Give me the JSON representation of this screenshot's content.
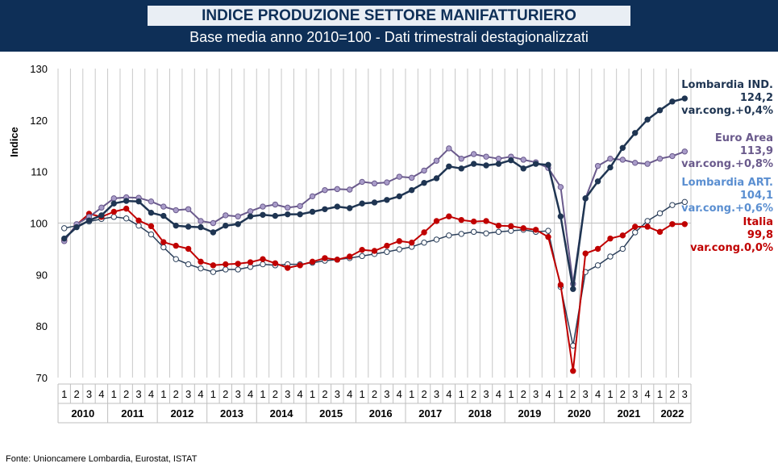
{
  "header": {
    "title": "INDICE PRODUZIONE SETTORE MANIFATTURIERO",
    "subtitle": "Base media anno 2010=100 - Dati trimestrali destagionalizzati"
  },
  "source": "Fonte: Unioncamere Lombardia, Eurostat, ISTAT",
  "annotations": [
    {
      "series": "Lombardia IND.",
      "label": "Lombardia IND.",
      "value": "124,2",
      "change": "var.cong.+0,4%",
      "color": "#1f3552"
    },
    {
      "series": "Euro Area",
      "label": "Euro Area",
      "value": "113,9",
      "change": "var.cong.+0,8%",
      "color": "#6a5a8c"
    },
    {
      "series": "Lombardia ART.",
      "label": "Lombardia ART.",
      "value": "104,1",
      "change": "var.cong.+0,6%",
      "color": "#5b8fd1"
    },
    {
      "series": "Italia",
      "label": "Italia",
      "value": "99,8",
      "change": "var.cong.0,0%",
      "color": "#c00000"
    }
  ],
  "chart_data": {
    "type": "line",
    "ylabel": "Indice",
    "ylim": [
      70,
      130
    ],
    "yticks": [
      70,
      80,
      90,
      100,
      110,
      120,
      130
    ],
    "grid": true,
    "quarter_labels": [
      "1",
      "2",
      "3",
      "4",
      "1",
      "2",
      "3",
      "4",
      "1",
      "2",
      "3",
      "4",
      "1",
      "2",
      "3",
      "4",
      "1",
      "2",
      "3",
      "4",
      "1",
      "2",
      "3",
      "4",
      "1",
      "2",
      "3",
      "4",
      "1",
      "2",
      "3",
      "4",
      "1",
      "2",
      "3",
      "4",
      "1",
      "2",
      "3",
      "4",
      "1",
      "2",
      "3",
      "4",
      "1",
      "2",
      "3",
      "4",
      "1",
      "2",
      "3"
    ],
    "years": [
      {
        "label": "2010",
        "quarters": 4
      },
      {
        "label": "2011",
        "quarters": 4
      },
      {
        "label": "2012",
        "quarters": 4
      },
      {
        "label": "2013",
        "quarters": 4
      },
      {
        "label": "2014",
        "quarters": 4
      },
      {
        "label": "2015",
        "quarters": 4
      },
      {
        "label": "2016",
        "quarters": 4
      },
      {
        "label": "2017",
        "quarters": 4
      },
      {
        "label": "2018",
        "quarters": 4
      },
      {
        "label": "2019",
        "quarters": 4
      },
      {
        "label": "2020",
        "quarters": 4
      },
      {
        "label": "2021",
        "quarters": 4
      },
      {
        "label": "2022",
        "quarters": 3
      }
    ],
    "series": [
      {
        "name": "Lombardia IND.",
        "color": "#1f3552",
        "marker_fill": "#1f3552",
        "line_width": 2.5,
        "values": [
          97.0,
          99.2,
          100.5,
          101.5,
          103.8,
          104.3,
          104.2,
          102.0,
          101.4,
          99.5,
          99.3,
          99.2,
          98.2,
          99.5,
          99.8,
          101.3,
          101.6,
          101.4,
          101.7,
          101.7,
          102.2,
          102.7,
          103.2,
          102.9,
          103.8,
          104.0,
          104.5,
          105.2,
          106.4,
          107.8,
          108.7,
          111.0,
          110.6,
          111.5,
          111.2,
          111.5,
          112.2,
          110.6,
          111.5,
          111.3,
          101.3,
          87.2,
          104.8,
          108.1,
          110.8,
          114.6,
          117.5,
          120.1,
          121.9,
          123.6,
          124.2
        ]
      },
      {
        "name": "Euro Area",
        "color": "#6a5a8c",
        "marker_fill": "#a99cc9",
        "line_width": 2,
        "values": [
          96.5,
          99.8,
          101.2,
          103.0,
          104.8,
          105.0,
          104.9,
          104.2,
          103.2,
          102.5,
          102.7,
          100.4,
          100.0,
          101.5,
          101.3,
          102.3,
          103.2,
          103.6,
          103.0,
          103.3,
          105.2,
          106.4,
          106.6,
          106.5,
          108.0,
          107.7,
          107.9,
          109.0,
          108.8,
          110.2,
          112.1,
          114.5,
          112.5,
          113.4,
          112.9,
          112.5,
          112.9,
          112.3,
          111.8,
          110.7,
          107.0,
          88.2,
          104.8,
          111.1,
          112.5,
          112.3,
          111.7,
          111.5,
          112.5,
          113.0,
          113.9
        ]
      },
      {
        "name": "Lombardia ART.",
        "color": "#2b3f5a",
        "marker_fill": "#ffffff",
        "line_width": 1.5,
        "values": [
          99.0,
          99.5,
          100.3,
          100.8,
          101.2,
          100.9,
          99.5,
          97.8,
          95.3,
          93.0,
          92.0,
          91.2,
          90.5,
          91.0,
          91.0,
          91.5,
          92.0,
          91.8,
          92.0,
          92.0,
          92.3,
          92.7,
          92.9,
          93.2,
          93.6,
          94.0,
          94.4,
          94.9,
          95.4,
          96.2,
          96.8,
          97.6,
          97.9,
          98.3,
          98.0,
          98.3,
          98.5,
          98.7,
          98.3,
          98.5,
          87.6,
          76.2,
          90.5,
          91.8,
          93.5,
          95.0,
          98.2,
          100.4,
          101.9,
          103.5,
          104.1
        ]
      },
      {
        "name": "Italia",
        "color": "#c00000",
        "marker_fill": "#c00000",
        "line_width": 2,
        "values": [
          96.6,
          99.7,
          101.8,
          101.2,
          102.2,
          102.8,
          100.5,
          99.4,
          96.3,
          95.6,
          95.0,
          92.5,
          91.8,
          92.0,
          92.1,
          92.4,
          93.0,
          92.2,
          91.3,
          91.8,
          92.5,
          93.2,
          92.9,
          93.5,
          94.8,
          94.6,
          95.6,
          96.5,
          96.2,
          98.2,
          100.4,
          101.3,
          100.6,
          100.3,
          100.4,
          99.5,
          99.4,
          99.0,
          98.7,
          97.3,
          88.0,
          71.3,
          94.1,
          95.0,
          97.0,
          97.6,
          99.3,
          99.3,
          98.3,
          99.8,
          99.8
        ]
      }
    ]
  }
}
